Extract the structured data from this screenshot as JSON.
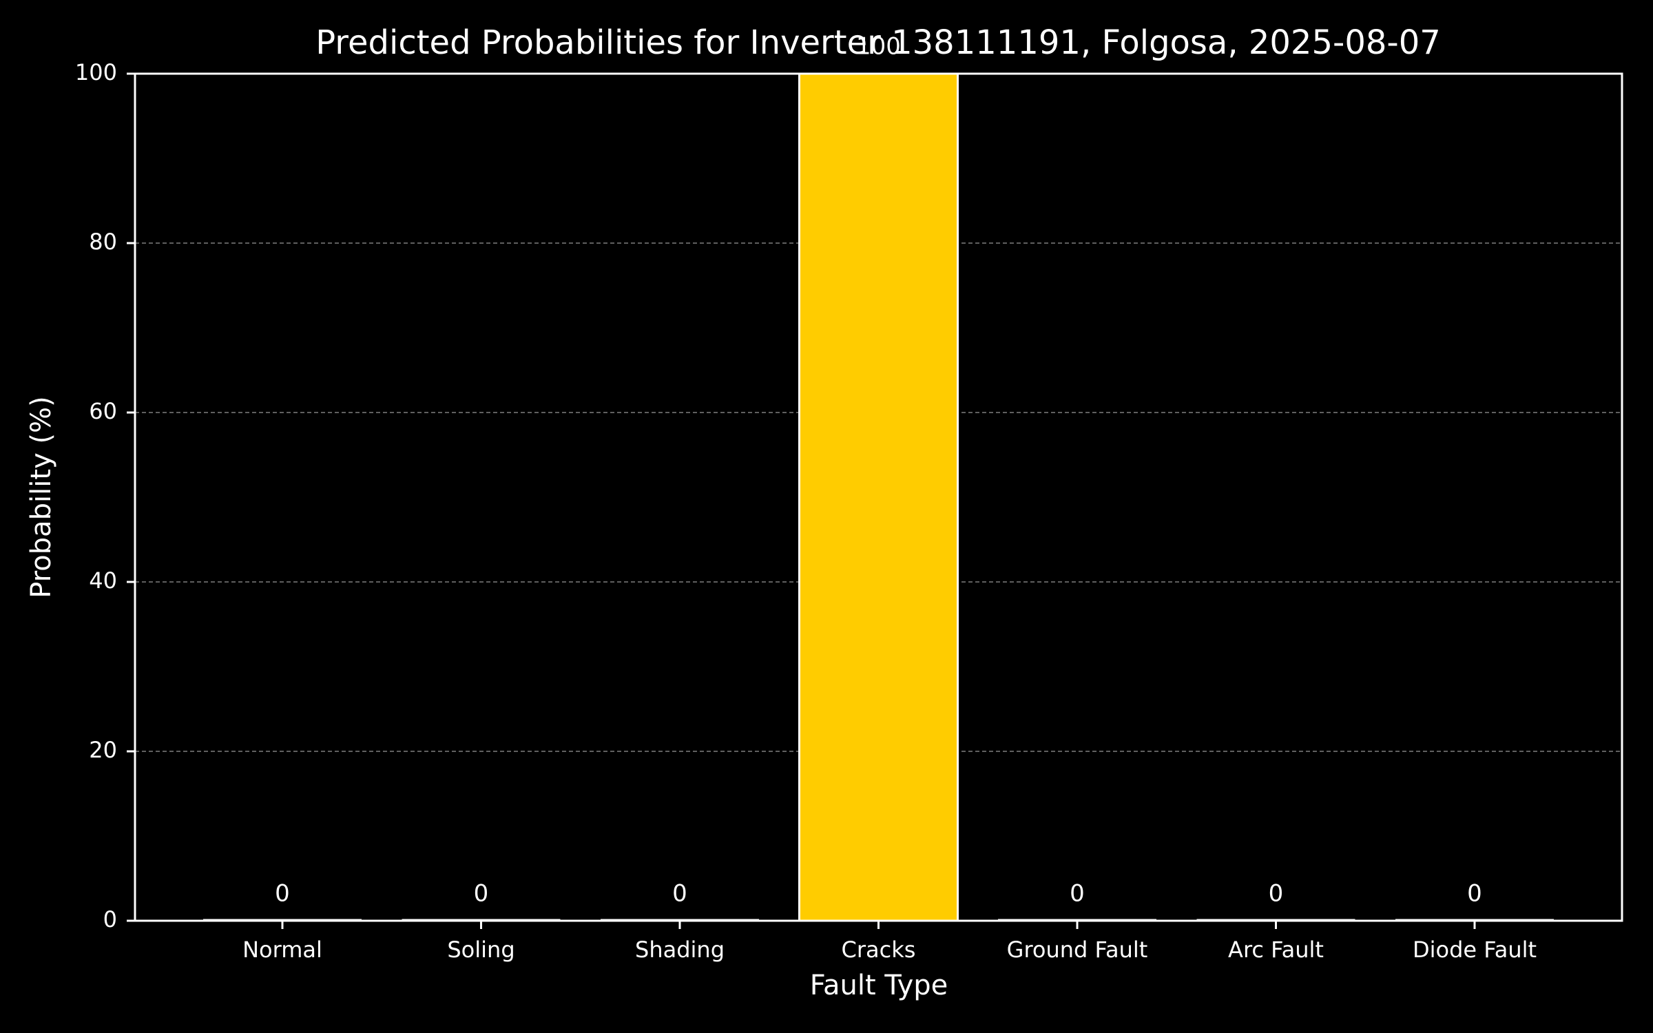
{
  "chart_data": {
    "type": "bar",
    "title": "Predicted Probabilities for Inverter 138111191, Folgosa, 2025-08-07",
    "xlabel": "Fault Type",
    "ylabel": "Probability (%)",
    "categories": [
      "Normal",
      "Soling",
      "Shading",
      "Cracks",
      "Ground Fault",
      "Arc Fault",
      "Diode Fault"
    ],
    "values": [
      0,
      0,
      0,
      100,
      0,
      0,
      0
    ],
    "data_labels": [
      "0",
      "0",
      "0",
      "100",
      "0",
      "0",
      "0"
    ],
    "ylim": [
      0,
      100
    ],
    "yticks": [
      0,
      20,
      40,
      60,
      80,
      100
    ],
    "ytick_labels": [
      "0",
      "20",
      "40",
      "60",
      "80",
      "100"
    ],
    "grid": "y-axis dashed",
    "colors": {
      "background": "#000000",
      "bar_fill": "#ffcc00",
      "bar_edge": "#ffffff",
      "axes": "#ffffff",
      "grid": "#7f7f7f",
      "text": "#ffffff"
    }
  }
}
